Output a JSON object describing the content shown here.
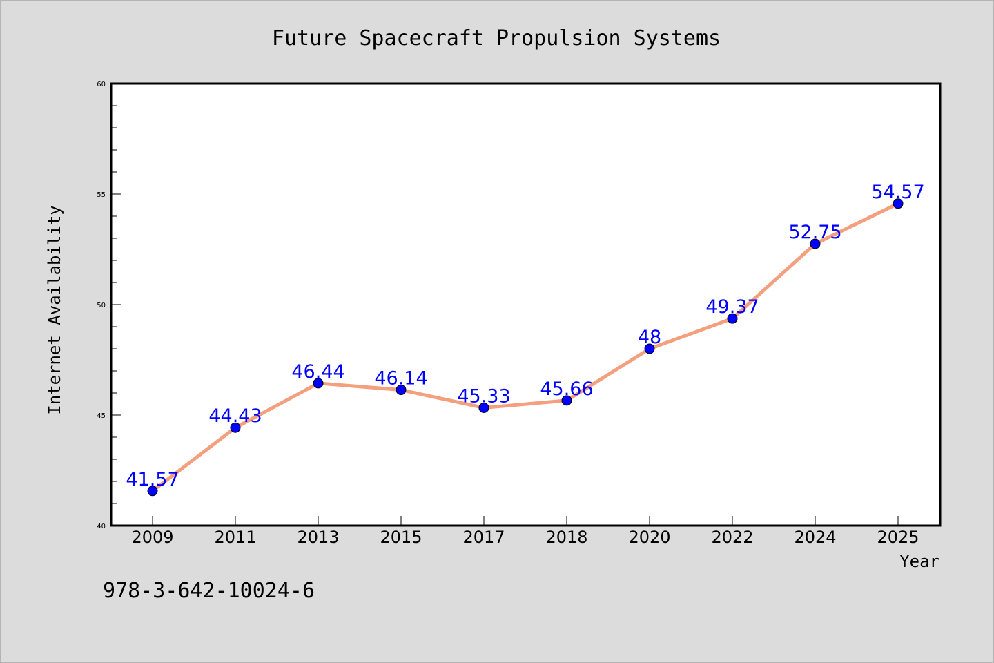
{
  "chart_data": {
    "type": "line",
    "title": "Future Spacecraft Propulsion Systems",
    "xlabel": "Year",
    "ylabel": "Internet Availability",
    "categories": [
      "2009",
      "2011",
      "2013",
      "2015",
      "2017",
      "2018",
      "2020",
      "2022",
      "2024",
      "2025"
    ],
    "values": [
      41.57,
      44.43,
      46.44,
      46.14,
      45.33,
      45.66,
      48,
      49.37,
      52.75,
      54.57
    ],
    "data_labels": [
      "41.57",
      "44.43",
      "46.44",
      "46.14",
      "45.33",
      "45.66",
      "48",
      "49.37",
      "52.75",
      "54.57"
    ],
    "ylim": [
      40,
      60
    ],
    "yticks": [
      "40",
      "45",
      "50",
      "55",
      "60"
    ],
    "grid": false,
    "legend": "none",
    "line_color": "#f4a07e",
    "marker_color": "#0000ff",
    "label_color": "#0000ff",
    "background_color": "#dcdcdc",
    "plot_background": "#ffffff"
  },
  "annotation": {
    "isbn": "978-3-642-10024-6"
  }
}
